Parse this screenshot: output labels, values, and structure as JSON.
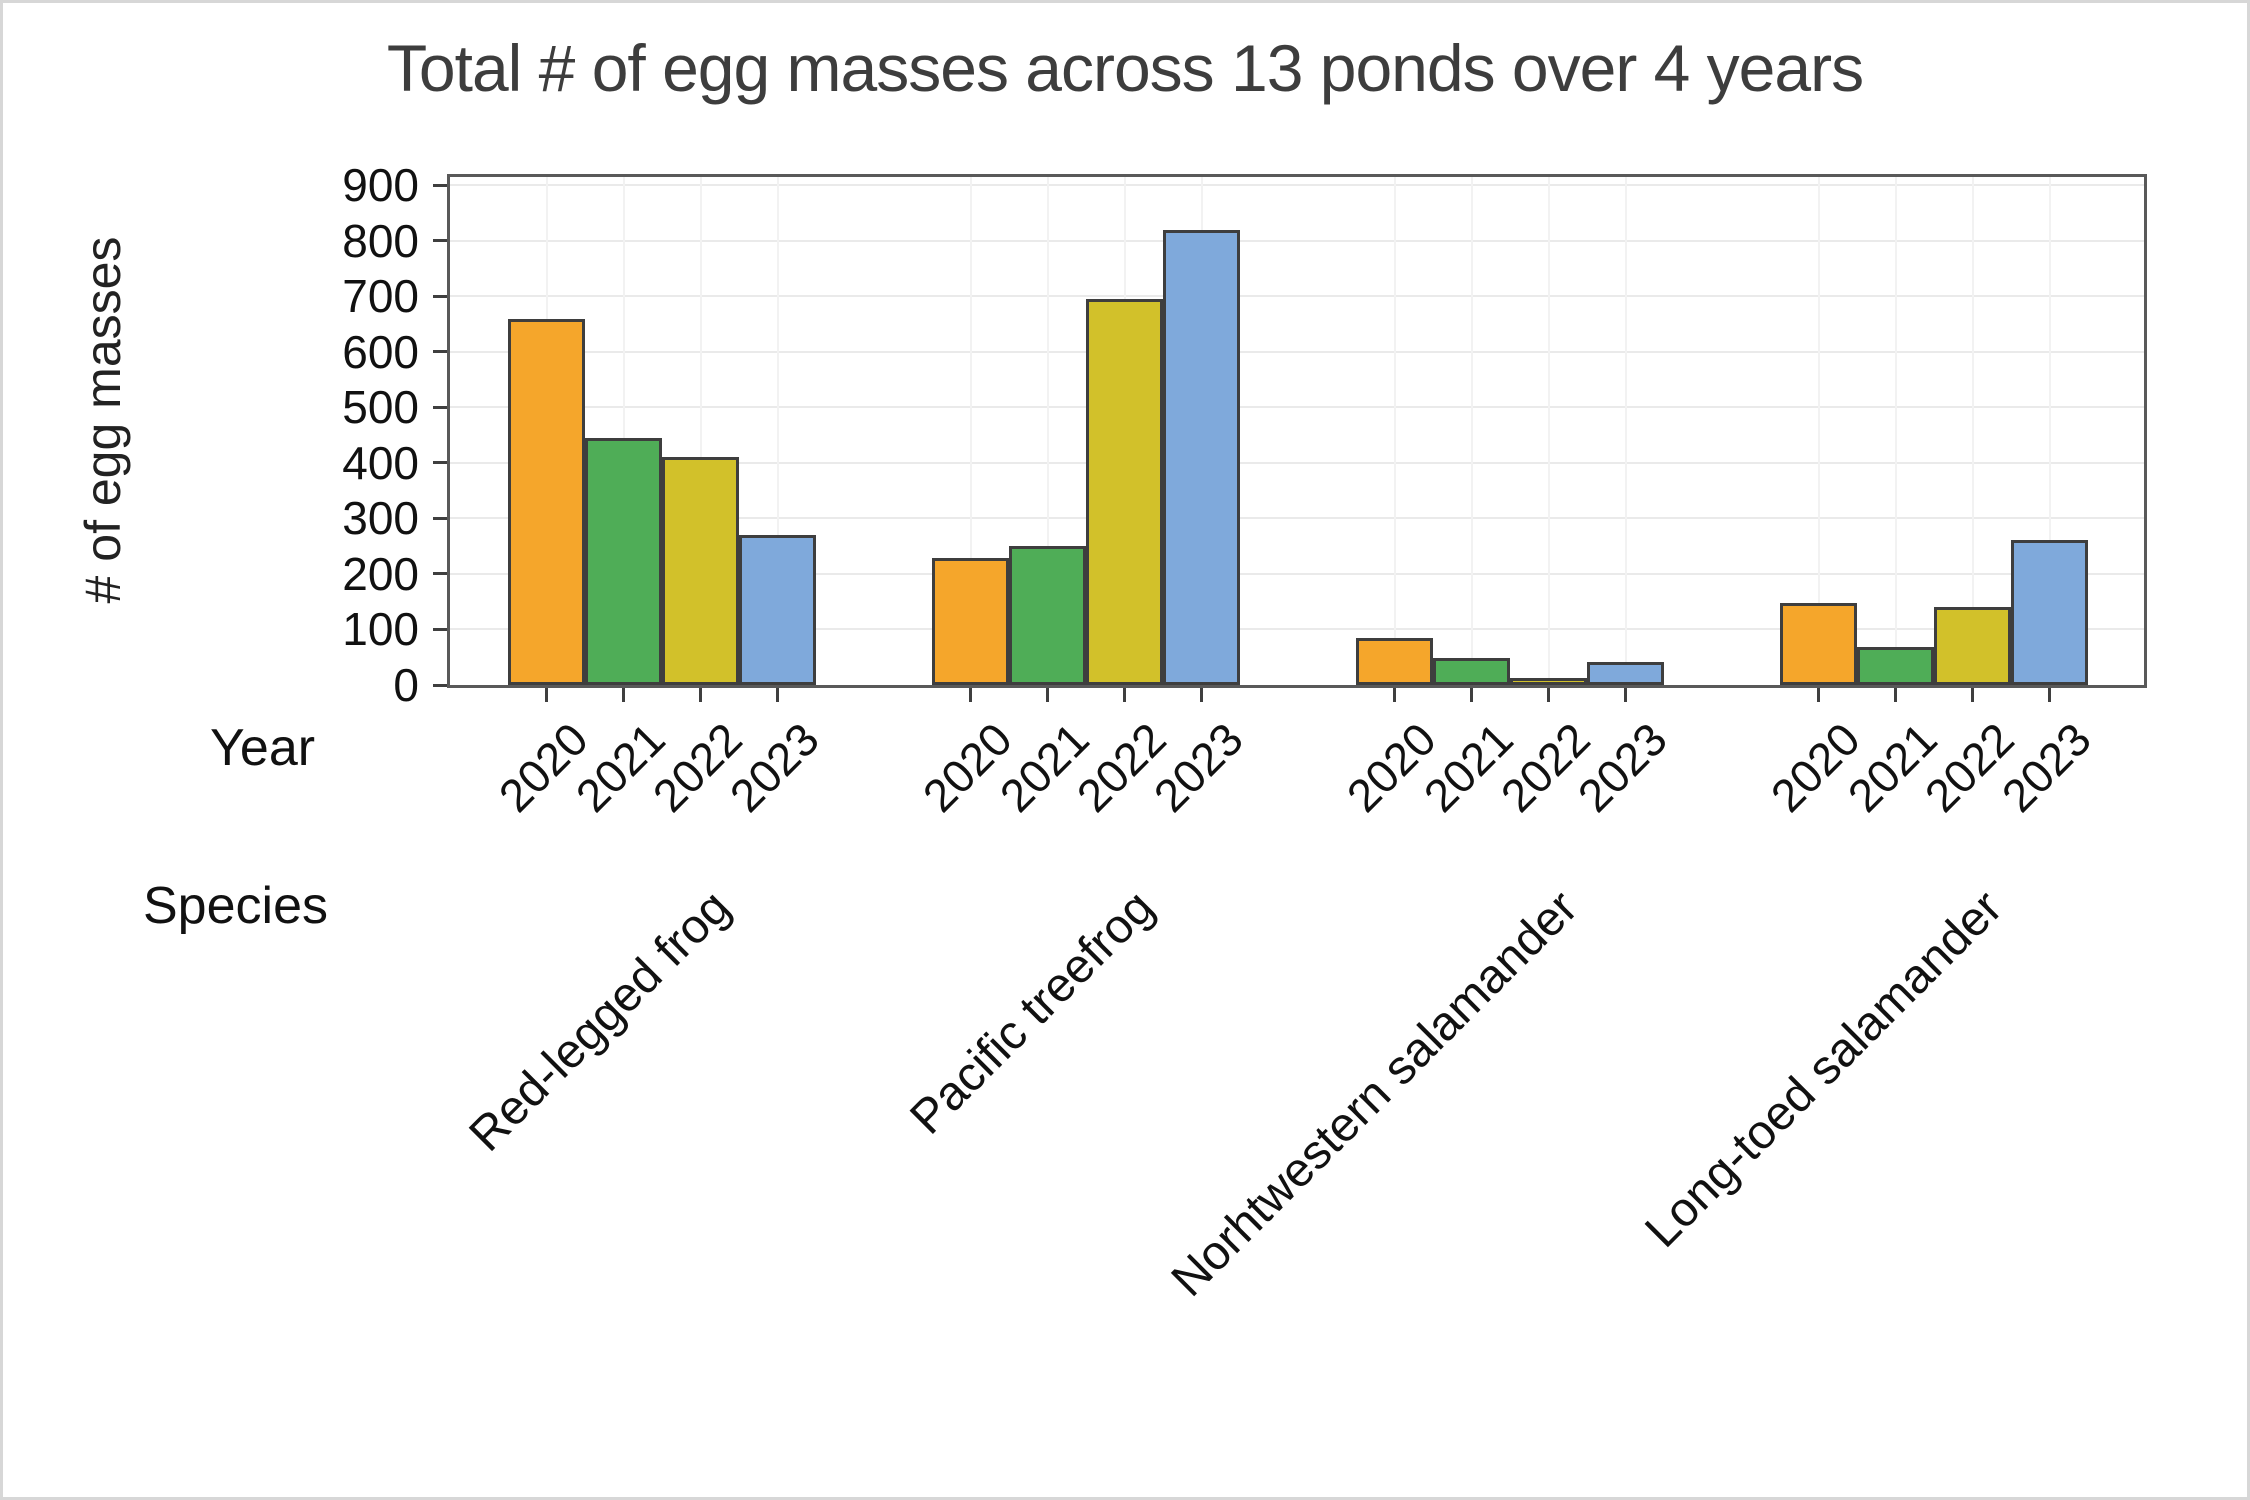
{
  "title": "Total # of egg masses across 13 ponds over 4 years",
  "axes": {
    "y_label": "# of egg masses",
    "year_caption": "Year",
    "species_caption": "Species"
  },
  "chart_data": {
    "type": "bar",
    "title": "Total # of egg masses across 13 ponds over 4 years",
    "xlabel": "Species",
    "ylabel": "# of egg masses",
    "ylim": [
      0,
      900
    ],
    "ytick_interval": 100,
    "grid": true,
    "legend": "none (years shown as x tick labels under each group)",
    "group_axis_caption": "Species",
    "series_axis_caption": "Year",
    "categories": [
      "Red-legged frog",
      "Pacific treefrog",
      "Norhtwestern salamander",
      "Long-toed salamander"
    ],
    "series": [
      {
        "name": "2020",
        "color": "#f5a62b",
        "values": [
          660,
          228,
          85,
          148
        ]
      },
      {
        "name": "2021",
        "color": "#4fad57",
        "values": [
          445,
          250,
          48,
          68
        ]
      },
      {
        "name": "2022",
        "color": "#d2c12a",
        "values": [
          410,
          695,
          12,
          140
        ]
      },
      {
        "name": "2023",
        "color": "#7fa9db",
        "values": [
          270,
          820,
          42,
          262
        ]
      }
    ],
    "bar_outline_color": "#3e3e3e"
  }
}
